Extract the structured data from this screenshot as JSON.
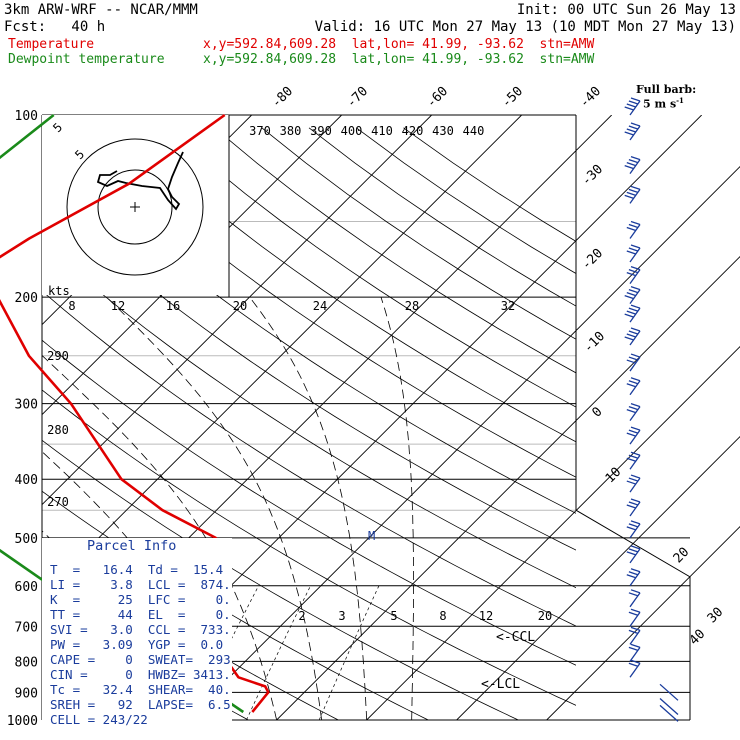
{
  "header": {
    "model": "3km ARW-WRF -- NCAR/MMM",
    "init": "Init: 00 UTC Sun 26 May 13",
    "fcst": "Fcst:   40 h",
    "valid": "Valid: 16 UTC Mon 27 May 13 (10 MDT Mon 27 May 13)"
  },
  "legend": {
    "temperature_label": "Temperature",
    "temperature_loc": "x,y=592.84,609.28  lat,lon= 41.99, -93.62  stn=AMW",
    "dewpoint_label": "Dewpoint temperature",
    "dewpoint_loc": "x,y=592.84,609.28  lat,lon= 41.99, -93.62  stn=AMW",
    "temperature_color": "#e00000",
    "dewpoint_color": "#1a8a1a"
  },
  "barb_note": {
    "line1": "Full barb:",
    "line2": "5 m s"
  },
  "hodograph": {
    "ring_labels": [
      "5",
      "5"
    ],
    "units": "kts",
    "speed_ticks": [
      "8",
      "12",
      "16"
    ],
    "color": "#1a3c9c"
  },
  "parcel_info": {
    "title": "Parcel Info",
    "rows": [
      "T  =   16.4  Td =  15.4",
      "LI =    3.8  LCL =  874.",
      "K  =     25  LFC =    0.",
      "TT =     44  EL  =    0.",
      "SVI =   3.0  CCL =  733.",
      "PW =   3.09  YGP =  0.0",
      "CAPE =    0  SWEAT=  293",
      "CIN =     0  HWBZ= 3413.",
      "Tc =   32.4  SHEAR=  40.",
      "SREH =   92  LAPSE=  6.5",
      "CELL = 243/22"
    ]
  },
  "annotations": {
    "ccl": "<-CCL",
    "lcl": "<-LCL",
    "m_marker": "M"
  },
  "chart_data": {
    "type": "line",
    "subtype": "skew-T log-p sounding",
    "y_axis": "pressure (hPa), log scale, inverted",
    "ylim": [
      1000,
      100
    ],
    "pressure_ticks": [
      100,
      200,
      300,
      400,
      500,
      600,
      700,
      800,
      900,
      1000
    ],
    "isotherm_labels": [
      "-80",
      "-70",
      "-60",
      "-50",
      "-40",
      "-30",
      "-20",
      "-10",
      "0",
      "10",
      "20",
      "30",
      "40"
    ],
    "theta_labels_top": [
      "370",
      "380",
      "390",
      "400",
      "410",
      "420",
      "430",
      "440"
    ],
    "theta_labels_left": [
      "290",
      "280",
      "270"
    ],
    "mixing_ratio_labels_200": [
      "8",
      "12",
      "16",
      "20",
      "24",
      "28",
      "32"
    ],
    "mixing_ratio_labels_700": [
      "2",
      "3",
      "5",
      "8",
      "12",
      "20"
    ],
    "series": [
      {
        "name": "Temperature",
        "color": "#e00000",
        "x": [
          -53,
          -56,
          -61,
          -63,
          -58,
          -48,
          -38,
          -24,
          -16,
          -7,
          -1,
          4,
          8,
          11,
          15,
          16,
          16.4
        ],
        "y": [
          100,
          130,
          160,
          180,
          200,
          250,
          300,
          400,
          450,
          500,
          600,
          700,
          800,
          850,
          880,
          900,
          970
        ]
      },
      {
        "name": "Dewpoint temperature",
        "color": "#1a8a1a",
        "x": [
          -72,
          -74,
          -80,
          -82,
          -83,
          -76,
          -66,
          -48,
          -38,
          -33,
          -20,
          -12,
          -9,
          -6,
          -3,
          10,
          15.4
        ],
        "y": [
          100,
          130,
          160,
          180,
          195,
          250,
          300,
          400,
          450,
          500,
          600,
          700,
          800,
          850,
          880,
          900,
          970
        ]
      }
    ],
    "wind_barbs": {
      "pressures": [
        100,
        110,
        125,
        140,
        160,
        175,
        190,
        205,
        220,
        240,
        265,
        290,
        320,
        350,
        385,
        420,
        460,
        500,
        550,
        600,
        650,
        700,
        750,
        800,
        850,
        900,
        950,
        975
      ],
      "speeds_ms": [
        20,
        20,
        20,
        20,
        15,
        15,
        15,
        20,
        20,
        20,
        15,
        15,
        15,
        15,
        15,
        15,
        15,
        15,
        15,
        15,
        10,
        10,
        10,
        10,
        10,
        15,
        20,
        20
      ]
    },
    "hodograph_points": [
      [
        0,
        0
      ],
      [
        -2,
        -2
      ],
      [
        -6,
        4
      ],
      [
        -10,
        10
      ],
      [
        -16,
        14
      ],
      [
        -26,
        12
      ],
      [
        -34,
        14
      ],
      [
        -38,
        20
      ],
      [
        -34,
        20
      ],
      [
        -32,
        26
      ],
      [
        -16,
        28
      ],
      [
        -12,
        36
      ],
      [
        -2,
        40
      ],
      [
        10,
        60
      ],
      [
        14,
        80
      ],
      [
        16,
        90
      ]
    ],
    "grid": true
  }
}
